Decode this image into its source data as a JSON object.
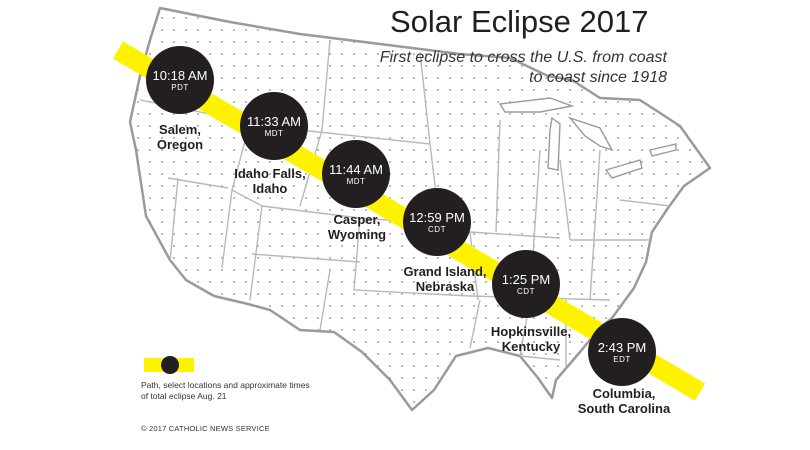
{
  "title": "Solar Eclipse 2017",
  "subtitle": "First eclipse to cross the U.S. from coast to coast since 1918",
  "locations": [
    {
      "time": "10:18 AM",
      "zone": "PDT",
      "city_line1": "Salem,",
      "city_line2": "Oregon"
    },
    {
      "time": "11:33 AM",
      "zone": "MDT",
      "city_line1": "Idaho Falls,",
      "city_line2": "Idaho"
    },
    {
      "time": "11:44 AM",
      "zone": "MDT",
      "city_line1": "Casper,",
      "city_line2": "Wyoming"
    },
    {
      "time": "12:59 PM",
      "zone": "CDT",
      "city_line1": "Grand Island,",
      "city_line2": "Nebraska"
    },
    {
      "time": "1:25 PM",
      "zone": "CDT",
      "city_line1": "Hopkinsville,",
      "city_line2": "Kentucky"
    },
    {
      "time": "2:43 PM",
      "zone": "EDT",
      "city_line1": "Columbia,",
      "city_line2": "South Carolina"
    }
  ],
  "legend": {
    "text": "Path, select locations and approximate times of total eclipse Aug. 21"
  },
  "copyright": "© 2017 CATHOLIC NEWS SERVICE",
  "colors": {
    "path": "#fff200",
    "badge": "#231f20",
    "map_outline": "#9a9a9a",
    "state_lines": "#b8b8b8",
    "dots": "#8c8c8c"
  }
}
